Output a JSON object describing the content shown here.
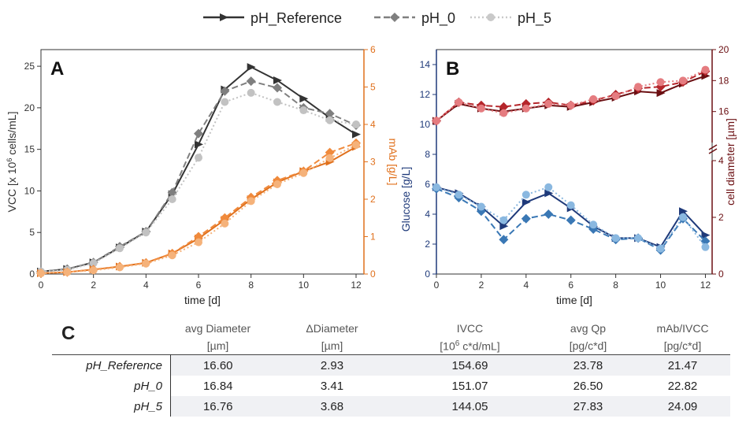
{
  "legend": [
    {
      "name": "pH_Reference",
      "color": "#333333",
      "marker": "triangle-right",
      "dash": "solid"
    },
    {
      "name": "pH_0",
      "color": "#7f7f7f",
      "marker": "diamond",
      "dash": "dashed"
    },
    {
      "name": "pH_5",
      "color": "#c9c9c9",
      "marker": "circle",
      "dash": "dotted"
    }
  ],
  "chart_data": [
    {
      "panel": "A",
      "type": "line",
      "xlabel": "time [d]",
      "ylabel": "VCC [x 10^6 cells/mL]",
      "ylabel_parts": [
        "VCC [x 10",
        "6",
        " cells/mL]"
      ],
      "y2label": "mAb [g/L]",
      "xlim": [
        0,
        12.3
      ],
      "ylim": [
        0,
        27
      ],
      "y2lim": [
        0,
        6
      ],
      "xticks": [
        0,
        2,
        4,
        6,
        8,
        10,
        12
      ],
      "yticks": [
        0,
        5,
        10,
        15,
        20,
        25
      ],
      "y2ticks": [
        0,
        1,
        2,
        3,
        4,
        5,
        6
      ],
      "colors": {
        "vcc": [
          "#333333",
          "#7f7f7f",
          "#c2c2c2"
        ],
        "mab": [
          "#e0701c",
          "#f08a3c",
          "#f5b27a"
        ]
      },
      "series": [
        {
          "name": "pH_Reference",
          "axis": "left",
          "x": [
            0,
            1,
            2,
            3,
            4,
            5,
            6,
            7,
            8,
            9,
            10,
            11,
            12
          ],
          "values": [
            0.3,
            0.6,
            1.4,
            3.2,
            5.1,
            9.6,
            15.6,
            22.2,
            24.9,
            23.3,
            21.1,
            18.8,
            16.8
          ]
        },
        {
          "name": "pH_0",
          "axis": "left",
          "x": [
            0,
            1,
            2,
            3,
            4,
            5,
            6,
            7,
            8,
            9,
            10,
            11,
            12
          ],
          "values": [
            0.3,
            0.6,
            1.4,
            3.3,
            5.1,
            9.8,
            16.9,
            22.0,
            23.2,
            22.4,
            20.0,
            19.3,
            17.9
          ]
        },
        {
          "name": "pH_5",
          "axis": "left",
          "x": [
            0,
            1,
            2,
            3,
            4,
            5,
            6,
            7,
            8,
            9,
            10,
            11,
            12
          ],
          "values": [
            0.3,
            0.5,
            1.3,
            3.1,
            5.0,
            9.0,
            14.0,
            20.7,
            21.8,
            20.7,
            19.7,
            18.5,
            18.0
          ]
        },
        {
          "name": "pH_Reference",
          "axis": "right",
          "x": [
            0,
            1,
            2,
            3,
            4,
            5,
            6,
            7,
            8,
            9,
            10,
            11,
            12
          ],
          "values": [
            0.02,
            0.05,
            0.12,
            0.2,
            0.3,
            0.55,
            0.95,
            1.45,
            2.0,
            2.45,
            2.75,
            3.0,
            3.4
          ]
        },
        {
          "name": "pH_0",
          "axis": "right",
          "x": [
            0,
            1,
            2,
            3,
            4,
            5,
            6,
            7,
            8,
            9,
            10,
            11,
            12
          ],
          "values": [
            0.02,
            0.05,
            0.12,
            0.2,
            0.3,
            0.55,
            1.0,
            1.5,
            2.05,
            2.5,
            2.75,
            3.25,
            3.5
          ]
        },
        {
          "name": "pH_5",
          "axis": "right",
          "x": [
            0,
            1,
            2,
            3,
            4,
            5,
            6,
            7,
            8,
            9,
            10,
            11,
            12
          ],
          "values": [
            0.02,
            0.05,
            0.1,
            0.18,
            0.28,
            0.5,
            0.85,
            1.35,
            1.95,
            2.4,
            2.7,
            3.1,
            3.45
          ]
        }
      ]
    },
    {
      "panel": "B",
      "type": "line",
      "xlabel": "time [d]",
      "ylabel": "Glucose [g/L]",
      "y2label": "cell diameter [µm]",
      "xlim": [
        0,
        12.3
      ],
      "ylim": [
        0,
        15
      ],
      "y2_segments": [
        [
          0,
          4
        ],
        [
          14,
          20
        ]
      ],
      "xticks": [
        0,
        2,
        4,
        6,
        8,
        10,
        12
      ],
      "yticks": [
        0,
        2,
        4,
        6,
        8,
        10,
        12,
        14
      ],
      "y2ticks": [
        0,
        2,
        4,
        16,
        18,
        20
      ],
      "colors": {
        "glucose": [
          "#1f3a7a",
          "#3a78b5",
          "#8ab8e0"
        ],
        "diameter": [
          "#6b0f12",
          "#b5262b",
          "#e57c80"
        ]
      },
      "series": [
        {
          "name": "pH_Reference",
          "axis": "left",
          "x": [
            0,
            1,
            2,
            3,
            4,
            5,
            6,
            7,
            8,
            9,
            10,
            11,
            12
          ],
          "values": [
            5.8,
            5.4,
            4.5,
            3.2,
            4.8,
            5.4,
            4.4,
            3.2,
            2.4,
            2.4,
            1.8,
            4.2,
            2.6
          ]
        },
        {
          "name": "pH_0",
          "axis": "left",
          "x": [
            0,
            1,
            2,
            3,
            4,
            5,
            6,
            7,
            8,
            9,
            10,
            11,
            12
          ],
          "values": [
            5.7,
            5.1,
            4.2,
            2.3,
            3.7,
            4.0,
            3.6,
            3.0,
            2.3,
            2.4,
            1.6,
            3.7,
            2.2
          ]
        },
        {
          "name": "pH_5",
          "axis": "left",
          "x": [
            0,
            1,
            2,
            3,
            4,
            5,
            6,
            7,
            8,
            9,
            10,
            11,
            12
          ],
          "values": [
            5.8,
            5.3,
            4.5,
            3.6,
            5.3,
            5.8,
            4.6,
            3.3,
            2.4,
            2.4,
            1.7,
            3.8,
            1.8
          ]
        },
        {
          "name": "pH_Reference",
          "axis": "right",
          "x": [
            0,
            1,
            2,
            3,
            4,
            5,
            6,
            7,
            8,
            9,
            10,
            11,
            12
          ],
          "values": [
            15.4,
            16.5,
            16.2,
            16.0,
            16.2,
            16.4,
            16.3,
            16.6,
            16.9,
            17.3,
            17.2,
            17.8,
            18.3
          ]
        },
        {
          "name": "pH_0",
          "axis": "right",
          "x": [
            0,
            1,
            2,
            3,
            4,
            5,
            6,
            7,
            8,
            9,
            10,
            11,
            12
          ],
          "values": [
            15.4,
            16.6,
            16.4,
            16.3,
            16.5,
            16.6,
            16.4,
            16.7,
            17.1,
            17.5,
            17.6,
            17.9,
            18.6
          ]
        },
        {
          "name": "pH_5",
          "axis": "right",
          "x": [
            0,
            1,
            2,
            3,
            4,
            5,
            6,
            7,
            8,
            9,
            10,
            11,
            12
          ],
          "values": [
            15.4,
            16.6,
            16.2,
            15.9,
            16.2,
            16.5,
            16.4,
            16.8,
            17.0,
            17.6,
            17.9,
            18.0,
            18.7
          ]
        }
      ]
    },
    {
      "panel": "C",
      "type": "table",
      "columns": [
        {
          "name": "avg Diameter",
          "unit": "[µm]"
        },
        {
          "name": "ΔDiameter",
          "unit": "[µm]"
        },
        {
          "name": "IVCC",
          "unit": "[10^6 c*d/mL]",
          "unit_parts": [
            "[10",
            "6",
            " c*d/mL]"
          ]
        },
        {
          "name": "avg Qp",
          "unit": "[pg/c*d]"
        },
        {
          "name": "mAb/IVCC",
          "unit": "[pg/c*d]"
        }
      ],
      "rows": [
        {
          "label": "pH_Reference",
          "values": [
            "16.60",
            "2.93",
            "154.69",
            "23.78",
            "21.47"
          ]
        },
        {
          "label": "pH_0",
          "values": [
            "16.84",
            "3.41",
            "151.07",
            "26.50",
            "22.82"
          ]
        },
        {
          "label": "pH_5",
          "values": [
            "16.76",
            "3.68",
            "144.05",
            "27.83",
            "24.09"
          ]
        }
      ]
    }
  ]
}
